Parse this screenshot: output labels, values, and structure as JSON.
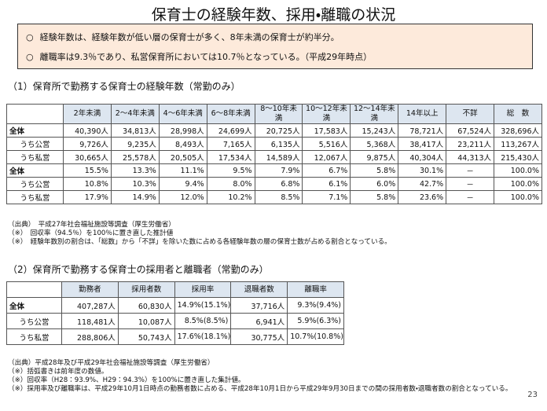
{
  "header": {
    "title": "保育士の経験年数、採用・離職の状況"
  },
  "summary": [
    "経験年数は、経験年数が低い層の保育士が多く、8年未満の保育士が約半分。",
    "離職率は9.3％であり、私営保育所においては10.7％となっている。（平成29年時点）"
  ],
  "section1": {
    "heading": "（1）保育所で勤務する保育士の経験年数（常勤のみ）",
    "table": {
      "columns": [
        "2年未満",
        "2～4年未満",
        "4～6年未満",
        "6～8年未満",
        "8～10年未満",
        "10～12年未満",
        "12～14年未満",
        "14年以上",
        "不詳",
        "総　数"
      ],
      "rows": [
        {
          "label": "全体",
          "cells": [
            "40,390人",
            "34,813人",
            "28,998人",
            "24,699人",
            "20,725人",
            "17,583人",
            "15,243人",
            "78,721人",
            "67,524人",
            "328,696人"
          ]
        },
        {
          "label": "うち公営",
          "cells": [
            "9,726人",
            "9,235人",
            "8,493人",
            "7,165人",
            "6,135人",
            "5,516人",
            "5,368人",
            "38,417人",
            "23,211人",
            "113,267人"
          ]
        },
        {
          "label": "うち私営",
          "cells": [
            "30,665人",
            "25,578人",
            "20,505人",
            "17,534人",
            "14,589人",
            "12,067人",
            "9,875人",
            "40,304人",
            "44,313人",
            "215,430人"
          ]
        },
        {
          "label": "全体",
          "cells": [
            "15.5%",
            "13.3%",
            "11.1%",
            "9.5%",
            "7.9%",
            "6.7%",
            "5.8%",
            "30.1%",
            "－",
            "100.0%"
          ]
        },
        {
          "label": "うち公営",
          "cells": [
            "10.8%",
            "10.3%",
            "9.4%",
            "8.0%",
            "6.8%",
            "6.1%",
            "6.0%",
            "42.7%",
            "－",
            "100.0%"
          ]
        },
        {
          "label": "うち私営",
          "cells": [
            "17.9%",
            "14.9%",
            "12.0%",
            "10.2%",
            "8.5%",
            "7.1%",
            "5.8%",
            "23.6%",
            "－",
            "100.0%"
          ]
        }
      ]
    },
    "notes": [
      "（出典）　平成27年社会福祉施設等調査（厚生労働省）",
      "（※）　回収率（94.5％）を100％に置き直した推計値",
      "（※）　経験年数別の割合は、「総数」から「不詳」を除いた数に占める各経験年数の層の保育士数が占める割合となっている。"
    ]
  },
  "section2": {
    "heading": "（2）保育所で勤務する保育士の採用者と離職者（常勤のみ）",
    "table": {
      "columns": [
        "勤務者",
        "採用者数",
        "採用率",
        "退職者数",
        "離職率"
      ],
      "rows": [
        {
          "label": "全体",
          "cells": [
            "407,287人",
            "60,830人",
            "14.9%(15.1%)",
            "37,716人",
            "9.3%(9.4%)"
          ]
        },
        {
          "label": "うち公営",
          "cells": [
            "118,481人",
            "10,087人",
            "8.5%(8.5%)",
            "6,941人",
            "5.9%(6.3%)"
          ]
        },
        {
          "label": "うち私営",
          "cells": [
            "288,806人",
            "50,743人",
            "17.6%(18.1%)",
            "30,775人",
            "10.7%(10.8%)"
          ]
        }
      ]
    },
    "notes": [
      "（出典）平成28年及び平成29年社会福祉施設等調査（厚生労働省）",
      "（※）括弧書きは前年度の数値。",
      "（※）回収率（H28：93.9%、H29：94.3%）を100%に置き直した集計値。",
      "（※）採用率及び離職率は、平成29年10月1日時点の勤務者数に占める、平成28年10月1日から平成29年9月30日までの間の採用者数・退職者数の割合となっている。"
    ]
  },
  "page_number": "23"
}
